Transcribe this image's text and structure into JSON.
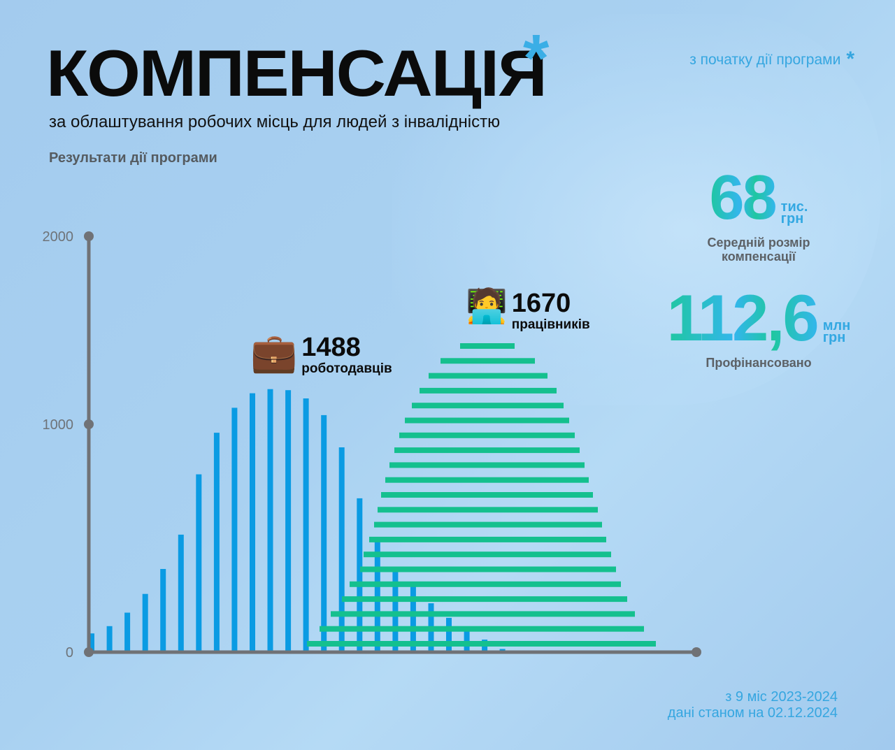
{
  "header": {
    "title": "КОМПЕНСАЦІЯ",
    "title_mark": "*",
    "subtitle": "за облаштування робочих місць для людей з інвалідністю",
    "section_label": "Результати дії програми",
    "since_note": "з початку дії програми",
    "since_mark": "*"
  },
  "stats": {
    "average": {
      "value": "68",
      "unit_line1": "тис.",
      "unit_line2": "грн",
      "label_line1": "Середній розмір",
      "label_line2": "компенсації"
    },
    "funded": {
      "value": "112,6",
      "unit_line1": "млн",
      "unit_line2": "грн",
      "label": "Профінансовано"
    }
  },
  "annotations": {
    "employers": {
      "icon": "briefcase-icon",
      "glyph": "💼",
      "value": "1488",
      "label": "роботодавців"
    },
    "workers": {
      "icon": "technologist-icon",
      "glyph": "🧑‍💻",
      "value": "1670",
      "label": "працівників"
    }
  },
  "footer": {
    "line1": "з 9 міс 2023-2024",
    "line2": "дані станом на 02.12.2024"
  },
  "colors": {
    "blue_bars": "#0a9be3",
    "green_bars": "#14c08e",
    "axis": "#707276",
    "accent": "#35a6e0"
  },
  "chart_data": {
    "type": "bar",
    "title": "Результати дії програми",
    "xlabel": "",
    "ylabel": "",
    "ylim": [
      0,
      2000
    ],
    "yticks": [
      "0",
      "1000",
      "2000"
    ],
    "grid": false,
    "legend": [
      {
        "name": "роботодавців",
        "total": 1488,
        "color": "#0a9be3",
        "style": "vertical bars"
      },
      {
        "name": "працівників",
        "total": 1670,
        "color": "#14c08e",
        "style": "horizontal stacked bars (pyramid)"
      }
    ],
    "series": [
      {
        "name": "роботодавців (vertical bars, decorative distribution)",
        "values": [
          90,
          125,
          190,
          280,
          400,
          565,
          855,
          1055,
          1175,
          1245,
          1265,
          1260,
          1220,
          1140,
          985,
          740,
          535,
          405,
          315,
          235,
          165,
          110,
          60,
          15
        ]
      },
      {
        "name": "працівників (horizontal bars, decorative pyramid, widths in px)",
        "values": [
          78,
          135,
          170,
          196,
          217,
          235,
          251,
          265,
          279,
          291,
          303,
          315,
          326,
          339,
          354,
          366,
          388,
          408,
          435,
          464,
          499
        ]
      }
    ]
  }
}
